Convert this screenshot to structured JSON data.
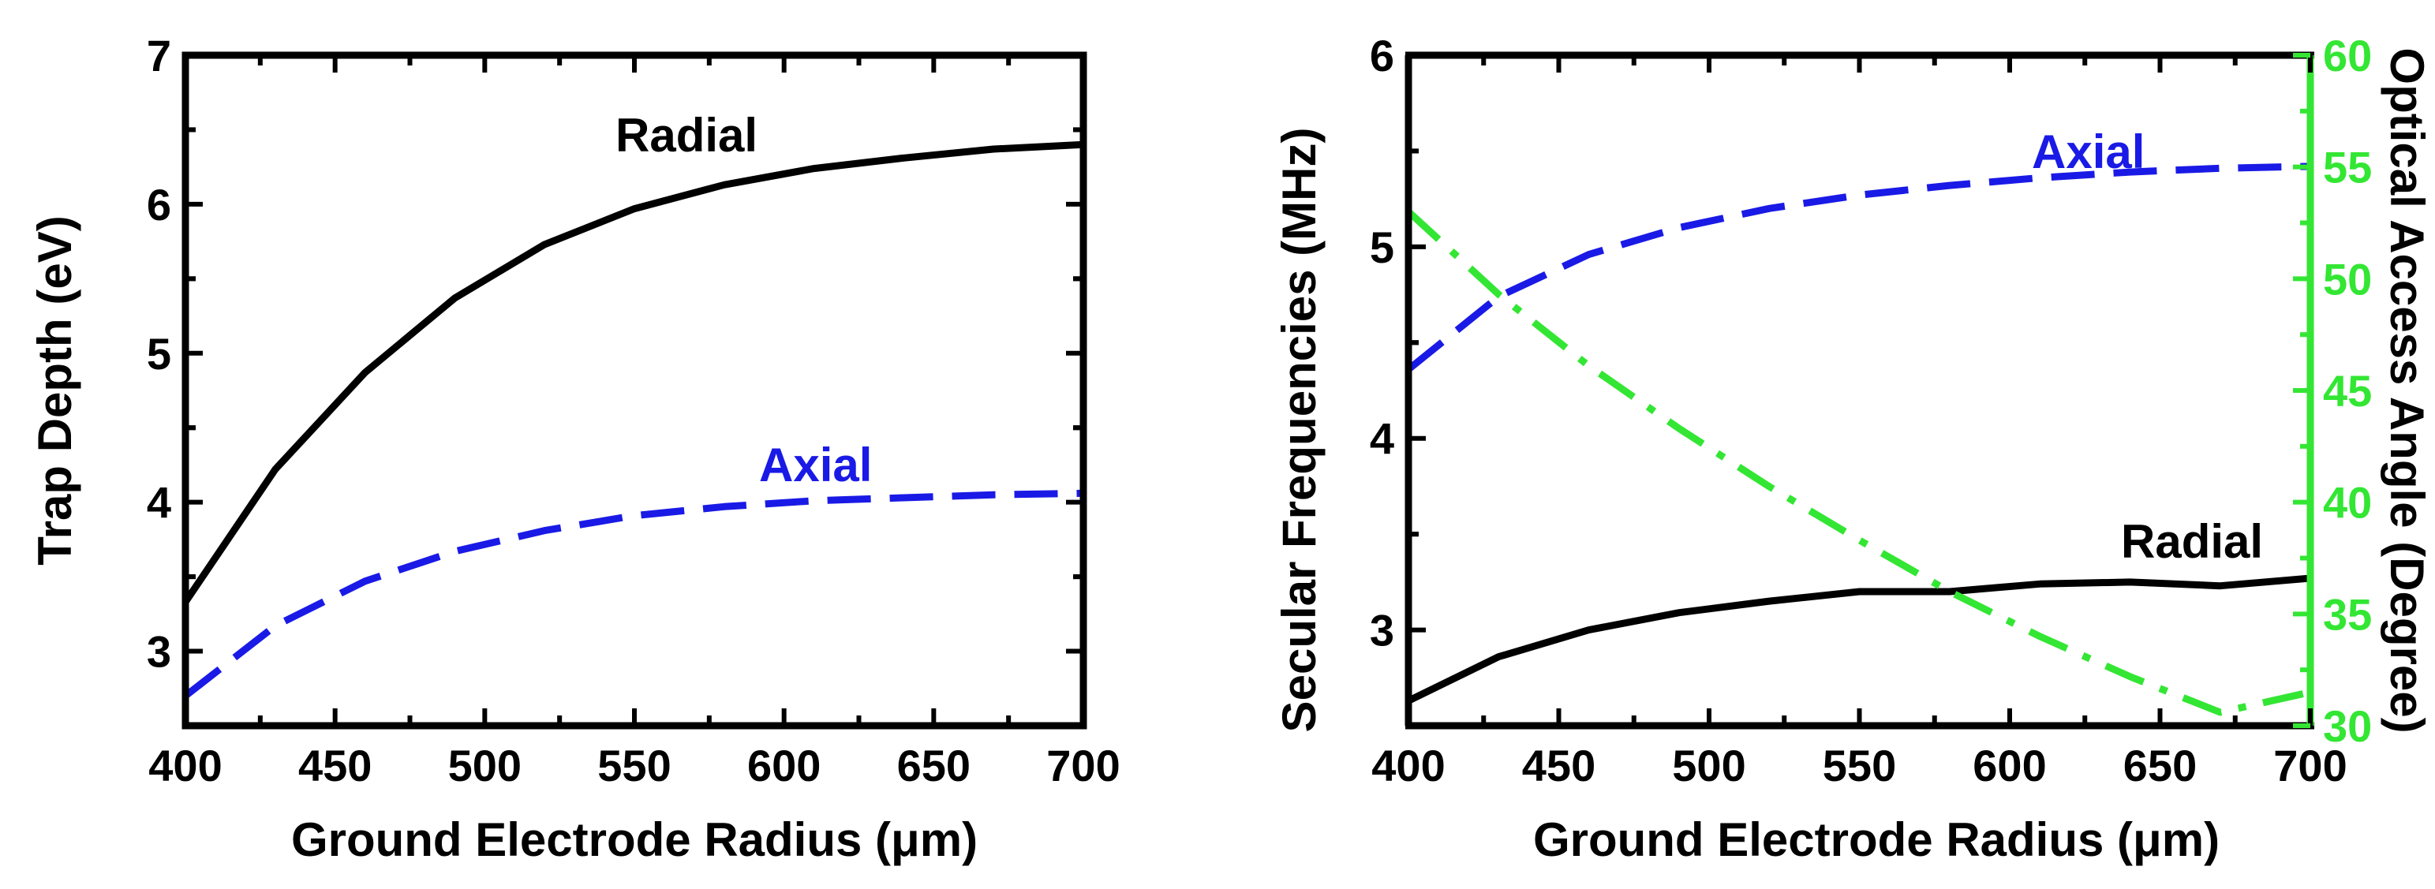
{
  "chart_data": [
    {
      "type": "line",
      "title": "",
      "xlabel": "Ground Electrode Radius (μm)",
      "ylabel": "Trap Depth (eV)",
      "xlim": [
        400,
        700
      ],
      "ylim": [
        2.5,
        7
      ],
      "xticks": [
        "400",
        "450",
        "500",
        "550",
        "600",
        "650",
        "700"
      ],
      "yticks": [
        "3",
        "4",
        "5",
        "6",
        "7"
      ],
      "series": [
        {
          "name": "Radial",
          "color": "#000000",
          "style": "solid",
          "x": [
            400,
            430,
            460,
            490,
            520,
            550,
            580,
            610,
            640,
            670,
            700
          ],
          "y": [
            3.33,
            4.22,
            4.87,
            5.37,
            5.73,
            5.97,
            6.13,
            6.24,
            6.31,
            6.37,
            6.4
          ]
        },
        {
          "name": "Axial",
          "color": "#1a1ae6",
          "style": "dashed",
          "x": [
            400,
            430,
            460,
            490,
            520,
            550,
            580,
            610,
            640,
            670,
            700
          ],
          "y": [
            2.7,
            3.17,
            3.47,
            3.67,
            3.81,
            3.91,
            3.97,
            4.01,
            4.03,
            4.05,
            4.06
          ]
        }
      ],
      "annotations": [
        {
          "text": "Radial",
          "color": "#000000"
        },
        {
          "text": "Axial",
          "color": "#1a1ae6"
        }
      ]
    },
    {
      "type": "line",
      "title": "",
      "xlabel": "Ground Electrode Radius (μm)",
      "ylabel": "Secular Frequencies (MHz)",
      "y2label": "Optical Access Angle (Degree)",
      "xlim": [
        400,
        700
      ],
      "ylim": [
        2.5,
        6
      ],
      "y2lim": [
        30,
        60
      ],
      "xticks": [
        "400",
        "450",
        "500",
        "550",
        "600",
        "650",
        "700"
      ],
      "yticks": [
        "3",
        "4",
        "5",
        "6"
      ],
      "y2ticks": [
        "30",
        "35",
        "40",
        "45",
        "50",
        "55",
        "60"
      ],
      "series": [
        {
          "name": "Axial",
          "color": "#1a1ae6",
          "style": "dashed",
          "axis": "left",
          "x": [
            400,
            430,
            460,
            490,
            520,
            550,
            580,
            610,
            640,
            670,
            700
          ],
          "y": [
            4.36,
            4.74,
            4.96,
            5.1,
            5.2,
            5.27,
            5.32,
            5.36,
            5.39,
            5.41,
            5.42
          ]
        },
        {
          "name": "Radial",
          "color": "#000000",
          "style": "solid",
          "axis": "left",
          "x": [
            400,
            430,
            460,
            490,
            520,
            550,
            580,
            610,
            640,
            670,
            700
          ],
          "y": [
            2.63,
            2.86,
            3.0,
            3.09,
            3.15,
            3.2,
            3.2,
            3.24,
            3.25,
            3.23,
            3.27
          ]
        },
        {
          "name": "Optical Access Angle",
          "color": "#33e633",
          "style": "dashdot",
          "axis": "right",
          "x": [
            400,
            430,
            460,
            490,
            520,
            550,
            580,
            610,
            640,
            670,
            700
          ],
          "y": [
            53.0,
            49.3,
            46.1,
            43.3,
            40.7,
            38.3,
            36.0,
            34.0,
            32.2,
            30.6,
            31.5
          ]
        }
      ],
      "annotations": [
        {
          "text": "Axial",
          "color": "#1a1ae6"
        },
        {
          "text": "Radial",
          "color": "#000000"
        }
      ]
    }
  ]
}
